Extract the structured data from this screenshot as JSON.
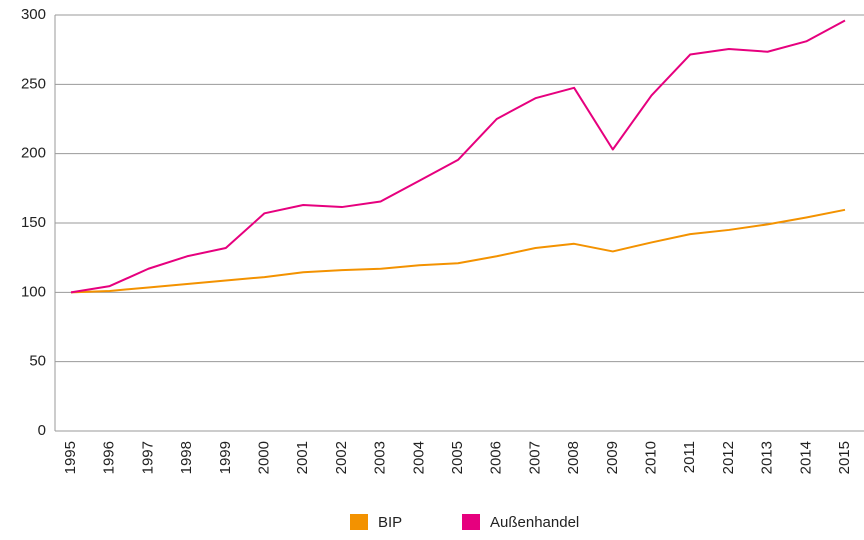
{
  "chart_data": {
    "type": "line",
    "categories": [
      "1995",
      "1996",
      "1997",
      "1998",
      "1999",
      "2000",
      "2001",
      "2002",
      "2003",
      "2004",
      "2005",
      "2006",
      "2007",
      "2008",
      "2009",
      "2010",
      "2011",
      "2012",
      "2013",
      "2014",
      "2015"
    ],
    "series": [
      {
        "name": "BIP",
        "color": "#f39200",
        "values": [
          100,
          101,
          103.5,
          106,
          108.5,
          111,
          114.5,
          116,
          117,
          119.5,
          121,
          126,
          132,
          135,
          129.5,
          136,
          142,
          145,
          149,
          154,
          159.5
        ]
      },
      {
        "name": "Außenhandel",
        "color": "#e6007e",
        "values": [
          100,
          104.5,
          117,
          126,
          132,
          157,
          163,
          161.5,
          165.5,
          180.5,
          195.5,
          225,
          240,
          247.5,
          203,
          242,
          271.5,
          275.5,
          273.5,
          281,
          296
        ]
      }
    ],
    "ylim": [
      0,
      300
    ],
    "yticks": [
      0,
      50,
      100,
      150,
      200,
      250,
      300
    ],
    "grid": true,
    "legend": "bottom"
  }
}
